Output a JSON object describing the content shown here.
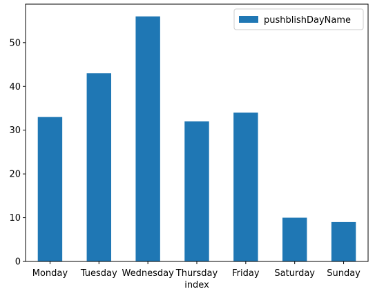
{
  "chart_data": {
    "type": "bar",
    "title": "",
    "xlabel": "index",
    "ylabel": "",
    "categories": [
      "Monday",
      "Tuesday",
      "Wednesday",
      "Thursday",
      "Friday",
      "Saturday",
      "Sunday"
    ],
    "series": [
      {
        "name": "pushblishDayName",
        "values": [
          33,
          43,
          56,
          32,
          34,
          10,
          9
        ],
        "color": "#1f77b4"
      }
    ],
    "ylim": [
      0,
      58.8
    ],
    "yticks": [
      0,
      10,
      20,
      30,
      40,
      50
    ],
    "grid": false,
    "legend": {
      "placement": "top-right"
    }
  }
}
